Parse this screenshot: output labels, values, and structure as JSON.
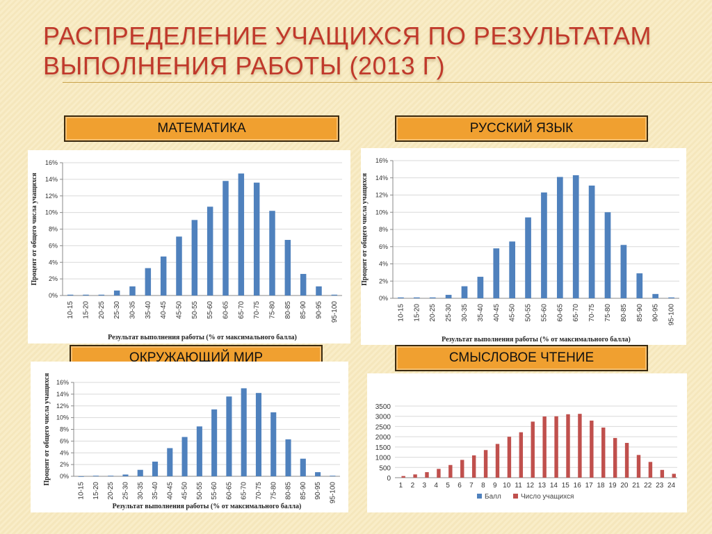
{
  "slide": {
    "title_line1": "РАСПРЕДЕЛЕНИЕ УЧАЩИХСЯ ПО РЕЗУЛЬТАТАМ",
    "title_line2": "ВЫПОЛНЕНИЯ РАБОТЫ (2013 Г)"
  },
  "labels": {
    "math": "МАТЕМАТИКА",
    "russian": "РУССКИЙ ЯЗЫК",
    "world": "ОКРУЖАЮЩИЙ МИР",
    "reading": "СМЫСЛОВОЕ ЧТЕНИЕ"
  },
  "colors": {
    "blue_bar": "#4f81bd",
    "red_bar": "#c0504d",
    "title": "#c0392b",
    "label_fill": "#f0a030"
  },
  "chart_data": [
    {
      "id": "math",
      "type": "bar",
      "categories": [
        "10-15",
        "15-20",
        "20-25",
        "25-30",
        "30-35",
        "35-40",
        "40-45",
        "45-50",
        "50-55",
        "55-60",
        "60-65",
        "65-70",
        "70-75",
        "75-80",
        "80-85",
        "85-90",
        "90-95",
        "95-100"
      ],
      "values": [
        0.1,
        0.1,
        0.1,
        0.6,
        1.1,
        3.3,
        4.7,
        7.1,
        9.1,
        10.7,
        13.8,
        14.7,
        13.6,
        10.2,
        6.7,
        2.6,
        1.1,
        0.1
      ],
      "ylim": [
        0,
        16
      ],
      "yticks": [
        "0%",
        "2%",
        "4%",
        "6%",
        "8%",
        "10%",
        "12%",
        "14%",
        "16%"
      ],
      "xlabel": "Результат выполнения работы (% от максимального балла)",
      "ylabel": "Процент от общего числа учащихся",
      "grid": true
    },
    {
      "id": "russian",
      "type": "bar",
      "categories": [
        "10-15",
        "15-20",
        "20-25",
        "25-30",
        "30-35",
        "35-40",
        "40-45",
        "45-50",
        "50-55",
        "55-60",
        "60-65",
        "65-70",
        "70-75",
        "75-80",
        "80-85",
        "85-90",
        "90-95",
        "95-100"
      ],
      "values": [
        0.1,
        0.1,
        0.1,
        0.4,
        1.4,
        2.5,
        5.8,
        6.6,
        9.4,
        12.3,
        14.1,
        14.3,
        13.1,
        10.0,
        6.2,
        2.9,
        0.5,
        0.1
      ],
      "ylim": [
        0,
        16
      ],
      "yticks": [
        "0%",
        "2%",
        "4%",
        "6%",
        "8%",
        "10%",
        "12%",
        "14%",
        "16%"
      ],
      "xlabel": "Результат выполнения работы (% от максимального балла)",
      "ylabel": "Процент от общего числа учащихся",
      "grid": true
    },
    {
      "id": "world",
      "type": "bar",
      "categories": [
        "10-15",
        "15-20",
        "20-25",
        "25-30",
        "30-35",
        "35-40",
        "40-45",
        "45-50",
        "50-55",
        "55-60",
        "60-65",
        "65-70",
        "70-75",
        "75-80",
        "80-85",
        "85-90",
        "90-95",
        "95-100"
      ],
      "values": [
        0.0,
        0.1,
        0.1,
        0.3,
        1.1,
        2.5,
        4.8,
        6.7,
        8.5,
        11.4,
        13.6,
        15.0,
        14.2,
        10.9,
        6.3,
        3.0,
        0.7,
        0.1
      ],
      "ylim": [
        0,
        16
      ],
      "yticks": [
        "0%",
        "2%",
        "4%",
        "6%",
        "8%",
        "10%",
        "12%",
        "14%",
        "16%"
      ],
      "xlabel": "Результат выполнения работы (% от максимального балла)",
      "ylabel": "Процент от общего числа учащихся",
      "grid": true
    },
    {
      "id": "reading",
      "type": "bar",
      "categories": [
        "1",
        "2",
        "3",
        "4",
        "5",
        "6",
        "7",
        "8",
        "9",
        "10",
        "11",
        "12",
        "13",
        "14",
        "15",
        "16",
        "17",
        "18",
        "19",
        "20",
        "21",
        "22",
        "23",
        "24"
      ],
      "series": [
        {
          "name": "Балл",
          "values": [
            0,
            0,
            0,
            0,
            0,
            0,
            0,
            0,
            0,
            0,
            0,
            0,
            0,
            0,
            0,
            0,
            0,
            0,
            0,
            0,
            0,
            0,
            0,
            0
          ]
        },
        {
          "name": "Число учащихся",
          "values": [
            80,
            160,
            270,
            430,
            620,
            870,
            1090,
            1350,
            1650,
            2000,
            2220,
            2740,
            2990,
            3000,
            3100,
            3120,
            2790,
            2450,
            1940,
            1700,
            1110,
            770,
            380,
            190
          ]
        }
      ],
      "ylim": [
        0,
        3500
      ],
      "yticks": [
        "0",
        "500",
        "1000",
        "1500",
        "2000",
        "2500",
        "3000",
        "3500"
      ],
      "legend": "bottom",
      "grid": true
    }
  ]
}
